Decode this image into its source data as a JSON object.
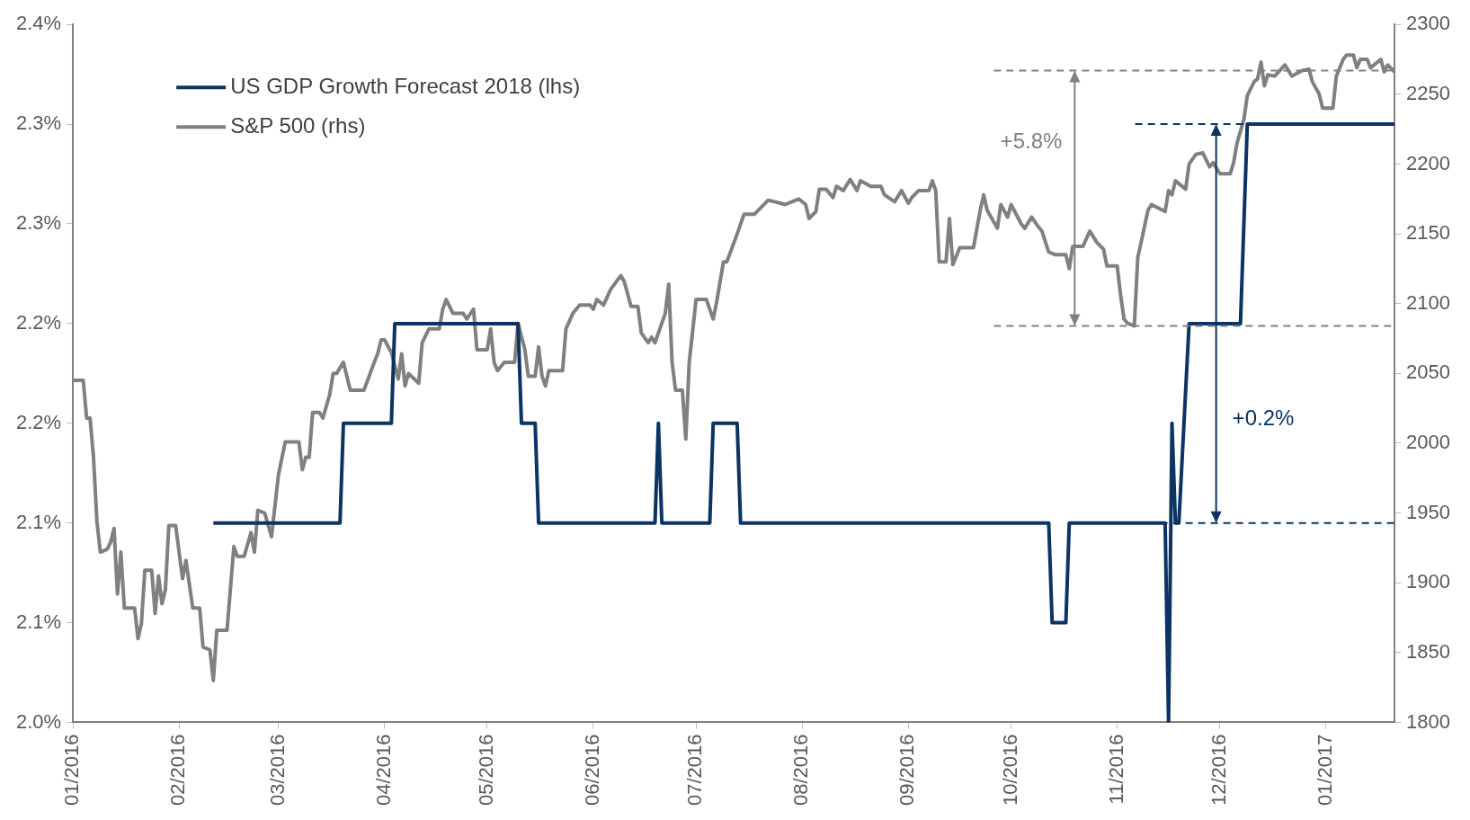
{
  "chart_data": {
    "type": "line",
    "xlim": [
      "2016-01-01",
      "2017-01-21"
    ],
    "xticks": [
      {
        "value": "2016-01-01",
        "label": "01/2016"
      },
      {
        "value": "2016-02-01",
        "label": "02/2016"
      },
      {
        "value": "2016-03-01",
        "label": "03/2016"
      },
      {
        "value": "2016-04-01",
        "label": "04/2016"
      },
      {
        "value": "2016-05-01",
        "label": "05/2016"
      },
      {
        "value": "2016-06-01",
        "label": "06/2016"
      },
      {
        "value": "2016-07-01",
        "label": "07/2016"
      },
      {
        "value": "2016-08-01",
        "label": "08/2016"
      },
      {
        "value": "2016-09-01",
        "label": "09/2016"
      },
      {
        "value": "2016-10-01",
        "label": "10/2016"
      },
      {
        "value": "2016-11-01",
        "label": "11/2016"
      },
      {
        "value": "2016-12-01",
        "label": "12/2016"
      },
      {
        "value": "2017-01-01",
        "label": "01/2017"
      }
    ],
    "ylim": [
      2.0,
      2.35
    ],
    "yticks": [
      {
        "value": 2.0,
        "label": "2.0%"
      },
      {
        "value": 2.05,
        "label": "2.1%"
      },
      {
        "value": 2.1,
        "label": "2.1%"
      },
      {
        "value": 2.15,
        "label": "2.2%"
      },
      {
        "value": 2.2,
        "label": "2.2%"
      },
      {
        "value": 2.25,
        "label": "2.3%"
      },
      {
        "value": 2.3,
        "label": "2.3%"
      },
      {
        "value": 2.35,
        "label": "2.4%"
      }
    ],
    "y2lim": [
      1800,
      2300
    ],
    "y2ticks": [
      1800,
      1850,
      1900,
      1950,
      2000,
      2050,
      2100,
      2150,
      2200,
      2250,
      2300
    ],
    "grid": false,
    "legend": "top left",
    "series": [
      {
        "name": "US GDP Growth Forecast 2018 (lhs)",
        "color": "#0b3463",
        "x": [
          "2016-02-11",
          "2016-03-19",
          "2016-03-20",
          "2016-04-03",
          "2016-04-04",
          "2016-05-10",
          "2016-05-11",
          "2016-05-15",
          "2016-05-16",
          "2016-06-19",
          "2016-06-20",
          "2016-06-21",
          "2016-07-05",
          "2016-07-06",
          "2016-07-13",
          "2016-07-14",
          "2016-10-12",
          "2016-10-13",
          "2016-10-17",
          "2016-10-18",
          "2016-11-15",
          "2016-11-16",
          "2016-11-17",
          "2016-11-18",
          "2016-11-19",
          "2016-11-22",
          "2016-12-07",
          "2016-12-09",
          "2017-01-21"
        ],
        "values": [
          2.1,
          2.1,
          2.15,
          2.15,
          2.2,
          2.2,
          2.15,
          2.15,
          2.1,
          2.1,
          2.15,
          2.1,
          2.1,
          2.15,
          2.15,
          2.1,
          2.1,
          2.05,
          2.05,
          2.1,
          2.1,
          2.0,
          2.15,
          2.1,
          2.1,
          2.2,
          2.2,
          2.3,
          2.3
        ]
      },
      {
        "name": "S&P 500 (rhs)",
        "color": "#808080",
        "axis": "y2",
        "x": [
          "2016-01-01",
          "2016-01-04",
          "2016-01-05",
          "2016-01-06",
          "2016-01-07",
          "2016-01-08",
          "2016-01-09",
          "2016-01-11",
          "2016-01-12",
          "2016-01-13",
          "2016-01-14",
          "2016-01-15",
          "2016-01-16",
          "2016-01-18",
          "2016-01-19",
          "2016-01-20",
          "2016-01-21",
          "2016-01-22",
          "2016-01-24",
          "2016-01-25",
          "2016-01-26",
          "2016-01-27",
          "2016-01-28",
          "2016-01-29",
          "2016-01-31",
          "2016-02-02",
          "2016-02-03",
          "2016-02-05",
          "2016-02-07",
          "2016-02-08",
          "2016-02-10",
          "2016-02-11",
          "2016-02-12",
          "2016-02-15",
          "2016-02-17",
          "2016-02-18",
          "2016-02-20",
          "2016-02-22",
          "2016-02-23",
          "2016-02-24",
          "2016-02-26",
          "2016-02-28",
          "2016-03-01",
          "2016-03-03",
          "2016-03-05",
          "2016-03-07",
          "2016-03-08",
          "2016-03-09",
          "2016-03-10",
          "2016-03-11",
          "2016-03-13",
          "2016-03-14",
          "2016-03-16",
          "2016-03-17",
          "2016-03-18",
          "2016-03-20",
          "2016-03-22",
          "2016-03-26",
          "2016-03-29",
          "2016-03-30",
          "2016-03-31",
          "2016-04-01",
          "2016-04-03",
          "2016-04-05",
          "2016-04-06",
          "2016-04-07",
          "2016-04-08",
          "2016-04-11",
          "2016-04-12",
          "2016-04-14",
          "2016-04-17",
          "2016-04-18",
          "2016-04-19",
          "2016-04-21",
          "2016-04-24",
          "2016-04-25",
          "2016-04-27",
          "2016-04-28",
          "2016-05-01",
          "2016-05-02",
          "2016-05-03",
          "2016-05-04",
          "2016-05-06",
          "2016-05-09",
          "2016-05-10",
          "2016-05-12",
          "2016-05-13",
          "2016-05-15",
          "2016-05-16",
          "2016-05-17",
          "2016-05-18",
          "2016-05-19",
          "2016-05-23",
          "2016-05-24",
          "2016-05-26",
          "2016-05-28",
          "2016-05-31",
          "2016-06-01",
          "2016-06-02",
          "2016-06-04",
          "2016-06-06",
          "2016-06-09",
          "2016-06-10",
          "2016-06-12",
          "2016-06-14",
          "2016-06-15",
          "2016-06-17",
          "2016-06-18",
          "2016-06-19",
          "2016-06-21",
          "2016-06-22",
          "2016-06-23",
          "2016-06-24",
          "2016-06-25",
          "2016-06-27",
          "2016-06-28",
          "2016-06-29",
          "2016-07-01",
          "2016-07-04",
          "2016-07-06",
          "2016-07-07",
          "2016-07-09",
          "2016-07-10",
          "2016-07-13",
          "2016-07-15",
          "2016-07-18",
          "2016-07-20",
          "2016-07-22",
          "2016-07-24",
          "2016-07-27",
          "2016-07-30",
          "2016-07-31",
          "2016-08-02",
          "2016-08-03",
          "2016-08-05",
          "2016-08-06",
          "2016-08-08",
          "2016-08-10",
          "2016-08-11",
          "2016-08-13",
          "2016-08-15",
          "2016-08-17",
          "2016-08-18",
          "2016-08-21",
          "2016-08-24",
          "2016-08-25",
          "2016-08-28",
          "2016-08-30",
          "2016-09-01",
          "2016-09-02",
          "2016-09-04",
          "2016-09-07",
          "2016-09-08",
          "2016-09-09",
          "2016-09-10",
          "2016-09-12",
          "2016-09-13",
          "2016-09-14",
          "2016-09-16",
          "2016-09-20",
          "2016-09-22",
          "2016-09-23",
          "2016-09-24",
          "2016-09-27",
          "2016-09-28",
          "2016-09-30",
          "2016-10-01",
          "2016-10-04",
          "2016-10-05",
          "2016-10-07",
          "2016-10-09",
          "2016-10-10",
          "2016-10-12",
          "2016-10-14",
          "2016-10-17",
          "2016-10-18",
          "2016-10-19",
          "2016-10-22",
          "2016-10-24",
          "2016-10-26",
          "2016-10-28",
          "2016-10-29",
          "2016-11-01",
          "2016-11-02",
          "2016-11-03",
          "2016-11-04",
          "2016-11-06",
          "2016-11-07",
          "2016-11-08",
          "2016-11-10",
          "2016-11-11",
          "2016-11-15",
          "2016-11-16",
          "2016-11-17",
          "2016-11-18",
          "2016-11-21",
          "2016-11-22",
          "2016-11-24",
          "2016-11-26",
          "2016-11-28",
          "2016-11-29",
          "2016-12-01",
          "2016-12-04",
          "2016-12-05",
          "2016-12-06",
          "2016-12-08",
          "2016-12-09",
          "2016-12-11",
          "2016-12-12",
          "2016-12-13",
          "2016-12-14",
          "2016-12-15",
          "2016-12-17",
          "2016-12-20",
          "2016-12-22",
          "2016-12-25",
          "2016-12-27",
          "2016-12-28",
          "2016-12-30",
          "2016-12-31",
          "2017-01-03",
          "2017-01-04",
          "2017-01-06",
          "2017-01-07",
          "2017-01-09",
          "2017-01-10",
          "2017-01-11",
          "2017-01-13",
          "2017-01-14",
          "2017-01-17",
          "2017-01-18",
          "2017-01-19",
          "2017-01-21"
        ],
        "values": [
          2045,
          2045,
          2018,
          2018,
          1990,
          1944,
          1922,
          1924,
          1929,
          1939,
          1892,
          1922,
          1882,
          1882,
          1882,
          1860,
          1871,
          1909,
          1909,
          1878,
          1905,
          1885,
          1895,
          1941,
          1941,
          1903,
          1916,
          1882,
          1882,
          1854,
          1852,
          1830,
          1866,
          1866,
          1926,
          1919,
          1919,
          1936,
          1922,
          1952,
          1950,
          1933,
          1977,
          2001,
          2001,
          2001,
          1981,
          1990,
          1990,
          2022,
          2022,
          2018,
          2035,
          2050,
          2050,
          2058,
          2038,
          2038,
          2058,
          2064,
          2074,
          2074,
          2065,
          2046,
          2064,
          2041,
          2050,
          2043,
          2072,
          2082,
          2082,
          2096,
          2103,
          2093,
          2093,
          2089,
          2096,
          2067,
          2067,
          2082,
          2058,
          2052,
          2058,
          2058,
          2086,
          2067,
          2048,
          2048,
          2069,
          2048,
          2041,
          2052,
          2052,
          2082,
          2093,
          2099,
          2099,
          2096,
          2103,
          2099,
          2110,
          2120,
          2116,
          2098,
          2098,
          2079,
          2072,
          2076,
          2072,
          2086,
          2093,
          2114,
          2058,
          2038,
          2038,
          2003,
          2058,
          2103,
          2103,
          2089,
          2101,
          2130,
          2130,
          2150,
          2164,
          2164,
          2169,
          2174,
          2173,
          2171,
          2174,
          2175,
          2171,
          2161,
          2166,
          2182,
          2182,
          2176,
          2184,
          2181,
          2189,
          2181,
          2188,
          2184,
          2184,
          2178,
          2173,
          2181,
          2172,
          2176,
          2181,
          2181,
          2188,
          2181,
          2130,
          2130,
          2161,
          2128,
          2140,
          2140,
          2167,
          2178,
          2167,
          2154,
          2171,
          2162,
          2171,
          2157,
          2154,
          2162,
          2155,
          2152,
          2137,
          2135,
          2135,
          2125,
          2141,
          2141,
          2152,
          2144,
          2139,
          2127,
          2127,
          2106,
          2089,
          2086,
          2084,
          2133,
          2144,
          2167,
          2171,
          2166,
          2181,
          2178,
          2188,
          2182,
          2200,
          2207,
          2208,
          2198,
          2201,
          2193,
          2193,
          2201,
          2215,
          2232,
          2249,
          2259,
          2261,
          2273,
          2256,
          2264,
          2263,
          2271,
          2263,
          2267,
          2268,
          2259,
          2250,
          2240,
          2240,
          2263,
          2275,
          2278,
          2278,
          2269,
          2275,
          2275,
          2269,
          2275,
          2266,
          2271,
          2266
        ]
      }
    ],
    "ref_lines": [
      {
        "axis": "y2",
        "value": 2267,
        "color": "#808080",
        "line_style": "dashed"
      },
      {
        "axis": "y2",
        "value": 2084,
        "color": "#808080",
        "line_style": "dashed"
      },
      {
        "axis": "y",
        "value": 2.3,
        "color": "#0b3463",
        "line_style": "dashed"
      },
      {
        "axis": "y",
        "value": 2.1,
        "color": "#0b3463",
        "line_style": "dashed"
      }
    ],
    "annotations": [
      "+5.8%",
      "+0.2%"
    ]
  }
}
